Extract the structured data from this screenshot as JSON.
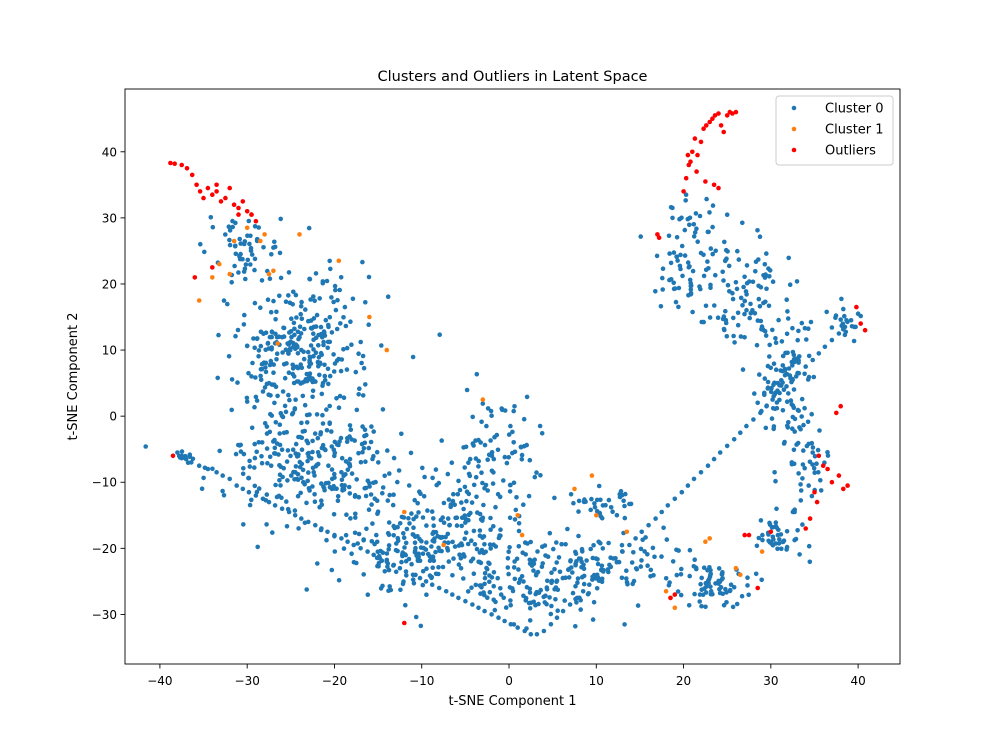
{
  "chart_data": {
    "type": "scatter",
    "title": "Clusters and Outliers in Latent Space",
    "xlabel": "t-SNE Component 1",
    "ylabel": "t-SNE Component 2",
    "xlim": [
      -44,
      44.8
    ],
    "ylim": [
      -37.5,
      49.5
    ],
    "xticks": [
      -40,
      -30,
      -20,
      -10,
      0,
      10,
      20,
      30,
      40
    ],
    "yticks": [
      -30,
      -20,
      -10,
      0,
      10,
      20,
      30,
      40
    ],
    "grid": false,
    "legend_position": "top-right",
    "series": [
      {
        "name": "Cluster 0",
        "color": "#1f77b4",
        "approx_count": 1500,
        "x": [
          -38.0,
          -37.5,
          -37.0,
          -36.4,
          -35.5,
          -34.5,
          -33.5,
          -32.8,
          -32.0,
          -31.2,
          -30.5,
          -29.8,
          -29.0,
          -28.2,
          -27.5,
          -26.8,
          -26.0,
          -25.2,
          -24.5,
          -23.8,
          -23.0,
          -22.2,
          -21.5,
          -20.8,
          -20.0,
          -19.2,
          -18.5,
          -17.8,
          -17.0,
          -16.2,
          -15.5,
          -14.8,
          -14.0,
          -13.2,
          -12.5,
          -11.8,
          -11.0,
          -10.2,
          -9.5,
          -8.8,
          -8.0,
          -7.2,
          -6.5,
          -5.8,
          -5.0,
          -4.2,
          -3.5,
          -2.8,
          -2.0,
          -1.2,
          -0.5,
          0.2,
          1.0,
          1.8,
          2.5,
          3.2,
          4.0,
          4.8,
          5.5,
          6.2,
          7.0,
          7.8,
          8.5,
          9.2,
          10.0,
          10.8,
          11.5,
          12.2,
          13.0,
          13.8,
          14.5,
          15.2,
          16.0,
          16.8,
          17.5,
          18.2,
          19.0,
          19.8,
          20.5,
          21.2,
          22.0,
          22.8,
          23.5,
          24.2,
          25.0,
          25.8,
          26.5,
          27.2,
          28.0,
          28.8,
          29.5,
          30.2,
          31.0,
          31.8,
          32.5,
          33.2,
          34.0,
          34.8,
          35.5,
          36.2,
          37.0,
          37.8,
          38.5,
          39.2,
          40.0
        ],
        "y": [
          -5.5,
          -6.0,
          -6.5,
          -7.0,
          -7.5,
          -8.0,
          -8.5,
          -9.0,
          -9.5,
          -10.5,
          -11.0,
          -11.5,
          -12.0,
          -12.5,
          -13.0,
          -13.5,
          -14.0,
          -14.5,
          -15.0,
          -15.5,
          -16.0,
          -16.5,
          -17.0,
          -17.5,
          -18.0,
          -18.5,
          -19.0,
          -19.5,
          -20.0,
          -20.5,
          -21.0,
          -21.5,
          -22.0,
          -22.5,
          -23.0,
          -23.5,
          -24.0,
          -24.5,
          -25.0,
          -25.5,
          -26.0,
          -26.5,
          -27.0,
          -27.5,
          -28.0,
          -28.5,
          -29.0,
          -29.5,
          -30.0,
          -30.5,
          -31.0,
          -31.5,
          -32.0,
          -32.5,
          -33.0,
          -33.0,
          -32.5,
          -31.5,
          -30.5,
          -29.5,
          -28.5,
          -27.5,
          -26.5,
          -25.5,
          -24.5,
          -23.5,
          -22.5,
          -21.5,
          -20.5,
          -19.5,
          -18.5,
          -17.5,
          -16.5,
          -15.5,
          -14.5,
          -13.5,
          -12.5,
          -11.5,
          -10.5,
          -9.5,
          -8.5,
          -7.5,
          -6.5,
          -5.5,
          -4.5,
          -3.5,
          -2.5,
          -1.5,
          -0.5,
          0.5,
          1.5,
          2.5,
          3.5,
          4.5,
          5.5,
          6.5,
          7.5,
          8.5,
          9.5,
          10.5,
          11.5,
          12.5,
          13.5,
          14.5,
          15.5
        ]
      },
      {
        "name": "Cluster 1",
        "color": "#ff7f0e",
        "x": [
          -35.5,
          -34.0,
          -33.2,
          -32.0,
          -31.5,
          -30.0,
          -29.5,
          -28.5,
          -28.0,
          -27.5,
          -27.0,
          -26.5,
          -24.0,
          -19.5,
          -16.0,
          -14.0,
          -12.0,
          -7.5,
          -3.0,
          1.0,
          1.5,
          7.5,
          9.5,
          10.0,
          13.5,
          18.0,
          18.5,
          19.0,
          22.5,
          23.0,
          26.0,
          26.5,
          29.0
        ],
        "y": [
          17.5,
          21.0,
          23.0,
          21.5,
          26.5,
          28.5,
          30.5,
          26.5,
          27.5,
          21.5,
          22.0,
          11.0,
          27.5,
          23.5,
          15.0,
          10.0,
          -14.5,
          -19.5,
          2.5,
          -15.0,
          -18.0,
          -11.0,
          -9.0,
          -15.0,
          -17.5,
          -26.5,
          -27.5,
          -29.0,
          -19.0,
          -18.5,
          -23.0,
          -24.0,
          -20.5
        ]
      },
      {
        "name": "Outliers",
        "color": "#ff0000",
        "x": [
          -38.8,
          -38.3,
          -37.5,
          -36.9,
          -36.3,
          -35.8,
          -35.4,
          -35.0,
          -34.5,
          -34.0,
          -33.5,
          -33.0,
          -32.5,
          -32.0,
          -31.5,
          -31.0,
          -30.5,
          -30.0,
          -29.5,
          -33.5,
          -31.0,
          -29.0,
          -34.0,
          -36.0,
          -38.5,
          -12.0,
          17.0,
          17.2,
          19.0,
          18.5,
          20.0,
          20.3,
          20.6,
          21.0,
          21.3,
          21.6,
          22.0,
          22.3,
          22.6,
          23.0,
          23.3,
          23.6,
          24.0,
          24.3,
          24.6,
          25.0,
          25.3,
          25.6,
          26.0,
          22.5,
          23.5,
          24.0,
          21.5,
          20.8,
          20.5,
          39.8,
          40.3,
          40.8,
          37.5,
          38.0,
          35.5,
          36.5,
          37.0,
          37.8,
          38.3,
          38.8,
          36.0,
          35.0,
          35.3,
          34.5,
          34.0,
          27.0,
          27.5,
          30.0,
          28.5
        ],
        "y": [
          38.3,
          38.2,
          38.0,
          37.5,
          36.5,
          35.0,
          34.0,
          33.0,
          34.5,
          33.5,
          34.0,
          32.5,
          33.0,
          34.5,
          32.0,
          31.5,
          32.5,
          31.0,
          30.5,
          35.0,
          30.5,
          29.5,
          22.5,
          21.0,
          -6.0,
          -31.3,
          27.5,
          27.0,
          -27.0,
          -27.5,
          34.0,
          36.0,
          38.0,
          40.0,
          42.0,
          39.5,
          41.5,
          43.5,
          44.0,
          44.5,
          45.0,
          45.5,
          45.8,
          44.0,
          43.0,
          45.5,
          46.0,
          45.8,
          46.0,
          35.5,
          35.0,
          34.5,
          37.0,
          38.5,
          39.5,
          16.5,
          14.0,
          13.0,
          0.5,
          1.5,
          -6.0,
          -8.0,
          -10.0,
          -9.0,
          -11.0,
          -10.5,
          -7.5,
          -11.5,
          -13.0,
          -15.5,
          -17.0,
          -18.0,
          -18.0,
          -17.5,
          -26.0
        ]
      }
    ]
  },
  "legend": {
    "items": [
      {
        "label": "Cluster 0",
        "color": "#1f77b4"
      },
      {
        "label": "Cluster 1",
        "color": "#ff7f0e"
      },
      {
        "label": "Outliers",
        "color": "#ff0000"
      }
    ]
  }
}
